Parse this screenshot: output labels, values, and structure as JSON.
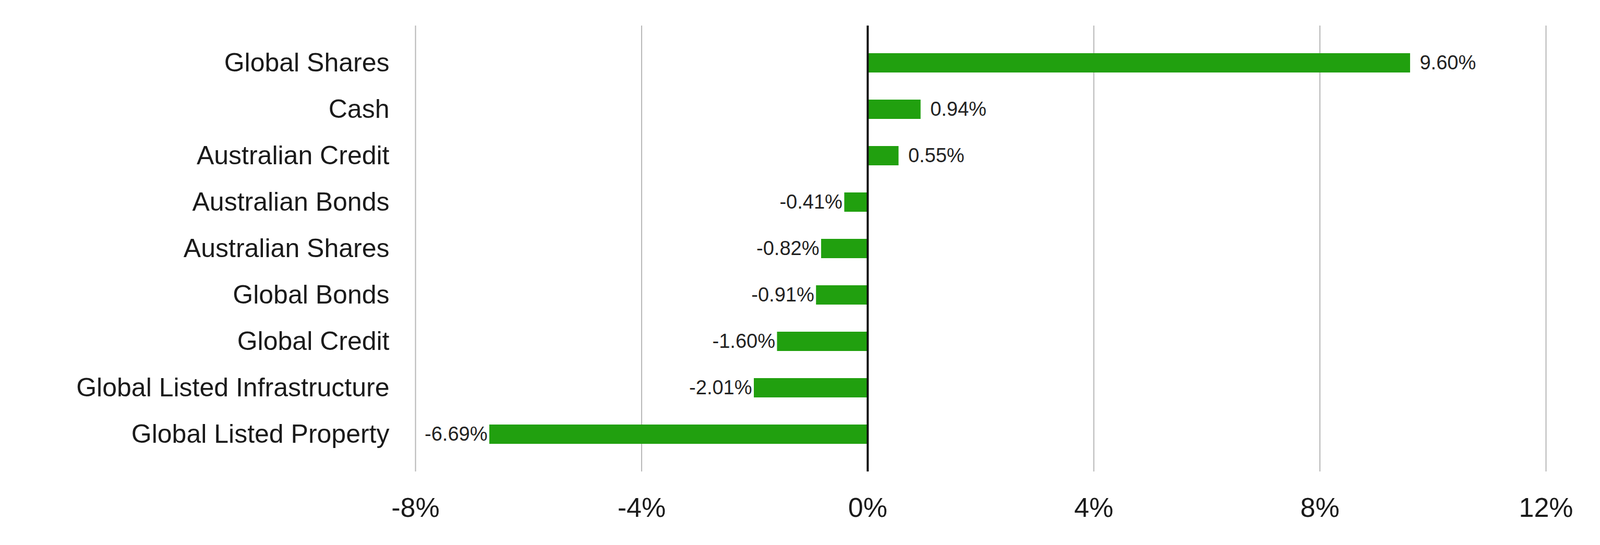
{
  "chart_data": {
    "type": "bar",
    "orientation": "horizontal",
    "categories": [
      "Global Shares",
      "Cash",
      "Australian Credit",
      "Australian Bonds",
      "Australian Shares",
      "Global Bonds",
      "Global Credit",
      "Global Listed Infrastructure",
      "Global Listed Property"
    ],
    "values": [
      9.6,
      0.94,
      0.55,
      -0.41,
      -0.82,
      -0.91,
      -1.6,
      -2.01,
      -6.69
    ],
    "value_labels": [
      "9.60%",
      "0.94%",
      "0.55%",
      "-0.41%",
      "-0.82%",
      "-0.91%",
      "-1.60%",
      "-2.01%",
      "-6.69%"
    ],
    "color": "#21a00f",
    "xlim": [
      -8,
      12
    ],
    "xticks": [
      {
        "value": -8,
        "label": "-8%"
      },
      {
        "value": -4,
        "label": "-4%"
      },
      {
        "value": 0,
        "label": "0%"
      },
      {
        "value": 4,
        "label": "4%"
      },
      {
        "value": 8,
        "label": "8%"
      },
      {
        "value": 12,
        "label": "12%"
      }
    ],
    "grid": true,
    "data_labels": true
  }
}
